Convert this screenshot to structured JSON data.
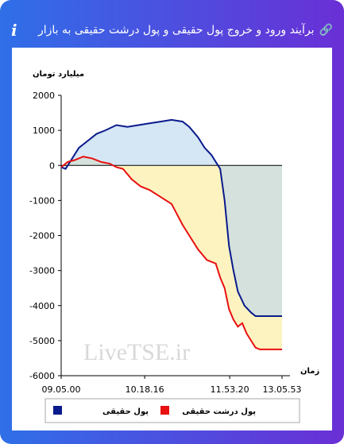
{
  "header": {
    "title": "برآیند ورود و خروج پول حقیقی و پول درشت حقیقی به بازار"
  },
  "chart_data": {
    "type": "line",
    "y_label": "میلیارد تومان",
    "x_label": "زمان",
    "watermark": "LiveTSE.ir",
    "xlim": [
      0,
      100
    ],
    "xticks": [
      {
        "value": 0,
        "label": "09.05.00"
      },
      {
        "value": 37.8,
        "label": "10.18.16"
      },
      {
        "value": 76.3,
        "label": "11.53.20"
      },
      {
        "value": 100,
        "label": "13.05.53"
      }
    ],
    "ylim": [
      -6000,
      2000
    ],
    "yticks": [
      -6000,
      -5000,
      -4000,
      -3000,
      -2000,
      -1000,
      0,
      1000,
      2000
    ],
    "series": [
      {
        "name": "پول حقیقی",
        "color": "#0a1a8c",
        "fill": "#b9d6ee",
        "x": [
          0,
          2,
          5,
          8,
          12,
          16,
          20,
          25,
          30,
          35,
          40,
          45,
          50,
          55,
          58,
          62,
          65,
          68,
          70,
          72,
          74,
          76,
          78,
          80,
          83,
          86,
          88,
          100
        ],
        "values": [
          -50,
          -100,
          200,
          500,
          700,
          900,
          1000,
          1150,
          1100,
          1150,
          1200,
          1250,
          1300,
          1250,
          1100,
          800,
          500,
          300,
          100,
          -100,
          -1000,
          -2300,
          -3000,
          -3600,
          -4000,
          -4200,
          -4300,
          -4300
        ]
      },
      {
        "name": "پول درشت حقیقی",
        "color": "#e81010",
        "fill": "#fdf3c0",
        "x": [
          0,
          3,
          6,
          10,
          14,
          18,
          22,
          25,
          28,
          32,
          36,
          40,
          45,
          50,
          55,
          58,
          62,
          66,
          70,
          72,
          74,
          76,
          78,
          80,
          82,
          84,
          86,
          88,
          90,
          100
        ],
        "values": [
          -50,
          100,
          150,
          250,
          200,
          100,
          50,
          -50,
          -100,
          -400,
          -600,
          -700,
          -900,
          -1100,
          -1700,
          -2000,
          -2400,
          -2700,
          -2800,
          -3200,
          -3500,
          -4100,
          -4400,
          -4600,
          -4500,
          -4800,
          -5000,
          -5200,
          -5250,
          -5250
        ]
      }
    ]
  }
}
